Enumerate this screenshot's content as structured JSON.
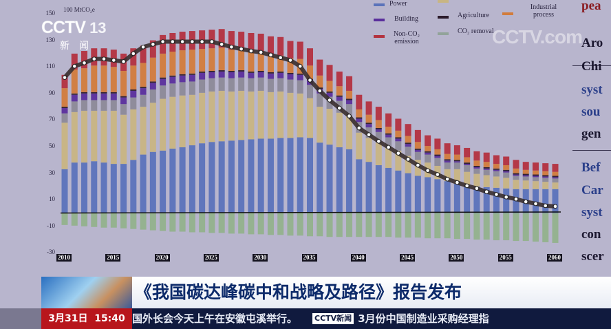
{
  "broadcast": {
    "channel_logo": "CCTV",
    "channel_number": "13",
    "channel_sub": "新闻",
    "watermark": "CCTV.com",
    "headline": "《我国碳达峰碳中和战略及路径》报告发布",
    "date": "3月31日",
    "time": "15:40",
    "ticker_left": "国外长会今天上午在安徽屯溪举行。",
    "ticker_logo": "CCTV新闻",
    "ticker_right": "3月份中国制造业采购经理指"
  },
  "slide_text": {
    "heading": "pea",
    "block1": [
      "Aro",
      "Chi",
      "syst",
      "sou",
      "gen"
    ],
    "block2": [
      "Bef",
      "Car",
      "syst",
      "con",
      "scer"
    ]
  },
  "chart_data": {
    "type": "bar",
    "stacked": true,
    "unit_label": "100 MtCO₂e",
    "ylim": [
      -30,
      150
    ],
    "yticks": [
      "150",
      "130",
      "110",
      "90",
      "70",
      "50",
      "30",
      "10",
      "-10",
      "-30"
    ],
    "xtick_labels": [
      "2010",
      "2015",
      "2020",
      "2025",
      "2030",
      "2035",
      "2040",
      "2045",
      "2050",
      "2055",
      "2060"
    ],
    "x": [
      2010,
      2011,
      2012,
      2013,
      2014,
      2015,
      2016,
      2017,
      2018,
      2019,
      2020,
      2021,
      2022,
      2023,
      2024,
      2025,
      2026,
      2027,
      2028,
      2029,
      2030,
      2031,
      2032,
      2033,
      2034,
      2035,
      2036,
      2037,
      2038,
      2039,
      2040,
      2041,
      2042,
      2043,
      2044,
      2045,
      2046,
      2047,
      2048,
      2049,
      2050,
      2051,
      2052,
      2053,
      2054,
      2055,
      2056,
      2057,
      2058,
      2059,
      2060
    ],
    "legend": [
      {
        "label": "Power",
        "color": "#5b73ba"
      },
      {
        "label": "",
        "color": "#c8b583"
      },
      {
        "label": "Building",
        "color": "#5a2f9c"
      },
      {
        "label": "Agriculture",
        "color": "#2b1b2b"
      },
      {
        "label": "Industrial process",
        "color": "#d27c3c"
      },
      {
        "label": "Non-CO₂ emission",
        "color": "#b3323f"
      },
      {
        "label": "CO₂ removal",
        "color": "#92b28c"
      }
    ],
    "series": [
      {
        "name": "Power",
        "color": "#5b73ba",
        "values": [
          33,
          38,
          38,
          39,
          38,
          37,
          37,
          40,
          44,
          46,
          47,
          48.5,
          49.5,
          51,
          52.5,
          53.5,
          54,
          54.5,
          55,
          55.5,
          56,
          56,
          56.5,
          56.5,
          57,
          56.5,
          53,
          51.5,
          49.5,
          48,
          40.5,
          38.5,
          36,
          34,
          32,
          30,
          28,
          27,
          25.5,
          24,
          22,
          21,
          20,
          19.5,
          19,
          18.5,
          18,
          18,
          18,
          18,
          18
        ]
      },
      {
        "color": "#c8b583",
        "values": [
          35,
          38,
          39,
          38,
          39,
          40,
          37,
          38,
          36,
          37,
          39,
          39,
          39,
          38,
          38,
          38,
          38,
          37,
          37,
          36,
          36,
          35,
          35,
          34,
          33,
          30,
          27,
          27,
          26,
          25,
          20,
          18,
          17,
          16,
          15,
          13,
          12,
          11,
          10,
          9,
          11,
          10,
          9.5,
          9,
          8.5,
          8,
          7,
          6.5,
          6,
          5.5,
          5
        ]
      },
      {
        "color": "#8c8a98",
        "values": [
          7,
          8,
          8,
          8,
          8,
          8,
          8,
          9,
          9,
          10,
          10,
          10,
          10,
          10,
          10,
          10,
          10,
          10,
          10,
          10,
          10,
          10,
          10,
          10,
          10,
          10,
          10,
          9,
          9,
          9,
          8,
          8,
          8,
          7,
          7,
          7,
          6,
          6,
          6,
          5,
          5,
          5,
          4,
          4,
          4,
          4,
          3,
          3,
          3,
          3,
          3
        ]
      },
      {
        "name": "Building",
        "color": "#5a2f9c",
        "values": [
          4,
          5,
          5,
          5,
          5,
          5,
          5,
          5,
          5,
          5,
          5,
          5,
          5,
          5,
          5,
          4.5,
          4.5,
          4.5,
          4.5,
          4,
          4,
          4,
          4,
          4,
          4,
          3.5,
          3.5,
          3,
          3,
          3,
          2.5,
          2.5,
          2,
          2,
          2,
          2,
          1.5,
          1.5,
          1.5,
          1.5,
          1,
          1,
          1,
          1,
          1,
          1,
          1,
          1,
          1,
          1,
          1
        ]
      },
      {
        "name": "Agriculture",
        "color": "#2b1b2b",
        "values": [
          1,
          1,
          1,
          1,
          1,
          1,
          1,
          1,
          1,
          1,
          1,
          1,
          1,
          1,
          1,
          1,
          1,
          1,
          1,
          1,
          1,
          1,
          1,
          1,
          1,
          1,
          1,
          1,
          1,
          1,
          1,
          1,
          1,
          1,
          1,
          1,
          1,
          1,
          1,
          1,
          1,
          1,
          1,
          1,
          1,
          1,
          1,
          1,
          1,
          1,
          1
        ]
      },
      {
        "name": "Industrial process",
        "color": "#d27c3c",
        "values": [
          14,
          18,
          18,
          20,
          20,
          19,
          19,
          18,
          18,
          18,
          18,
          18,
          18,
          18,
          17,
          17,
          17,
          16,
          15,
          15,
          14,
          13,
          12,
          11,
          11,
          10,
          9,
          8,
          7,
          6,
          6,
          6,
          6,
          5,
          5,
          5,
          5,
          4,
          4,
          4,
          4,
          4,
          4,
          4,
          3.5,
          3.5,
          3.5,
          3,
          3,
          3,
          3
        ]
      },
      {
        "name": "Non-CO₂ emission",
        "color": "#b3323f",
        "values": [
          10,
          12,
          13,
          13,
          13,
          13,
          13,
          13,
          13,
          13,
          14,
          14,
          14,
          14,
          14,
          14,
          14,
          14,
          14,
          14,
          14,
          14,
          14,
          13,
          13,
          13,
          12,
          12,
          11,
          11,
          11,
          10,
          10,
          10,
          9,
          9,
          9,
          8,
          8,
          8,
          7,
          7,
          7,
          7,
          6.5,
          6.5,
          6.5,
          6,
          6,
          6,
          6
        ]
      },
      {
        "name": "CO₂ removal",
        "color": "#92b28c",
        "values": [
          -9,
          -9.5,
          -10,
          -10.5,
          -11,
          -11,
          -11.5,
          -12,
          -12.5,
          -13,
          -13.5,
          -14,
          -14,
          -14.5,
          -14.5,
          -15,
          -15,
          -15.5,
          -15.5,
          -16,
          -16,
          -16.5,
          -16.5,
          -17,
          -17,
          -17.5,
          -17.5,
          -18,
          -18,
          -18,
          -18,
          -18,
          -18,
          -18,
          -18.5,
          -18.5,
          -18.5,
          -19,
          -19,
          -19,
          -19.5,
          -19.5,
          -20,
          -20,
          -20.5,
          -20.5,
          -21,
          -21,
          -21.5,
          -22,
          -22.5
        ]
      }
    ],
    "net_line": {
      "color": "#3a2f2f",
      "values": [
        102,
        110.5,
        113,
        116,
        116,
        115,
        114,
        120,
        125,
        127,
        129,
        129,
        129,
        129,
        129,
        129,
        127,
        125,
        123.5,
        122,
        121,
        119,
        117,
        115,
        110.5,
        100,
        92,
        85,
        79,
        73,
        64,
        59,
        54,
        49.5,
        45,
        40.5,
        36,
        32,
        29,
        25.5,
        23,
        20.5,
        18.5,
        16,
        14,
        12,
        10.5,
        8.5,
        7,
        5.5,
        5
      ]
    },
    "zero_line": true,
    "grid": false
  }
}
